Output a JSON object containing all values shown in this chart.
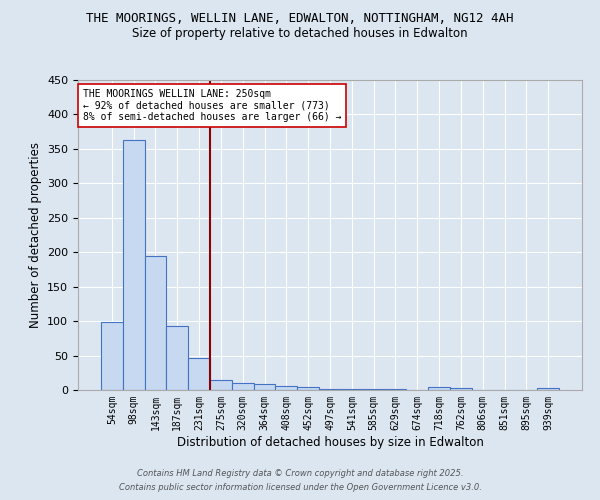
{
  "title_line1": "THE MOORINGS, WELLIN LANE, EDWALTON, NOTTINGHAM, NG12 4AH",
  "title_line2": "Size of property relative to detached houses in Edwalton",
  "xlabel": "Distribution of detached houses by size in Edwalton",
  "ylabel": "Number of detached properties",
  "bar_labels": [
    "54sqm",
    "98sqm",
    "143sqm",
    "187sqm",
    "231sqm",
    "275sqm",
    "320sqm",
    "364sqm",
    "408sqm",
    "452sqm",
    "497sqm",
    "541sqm",
    "585sqm",
    "629sqm",
    "674sqm",
    "718sqm",
    "762sqm",
    "806sqm",
    "851sqm",
    "895sqm",
    "939sqm"
  ],
  "bar_values": [
    99,
    363,
    194,
    93,
    46,
    14,
    10,
    9,
    6,
    4,
    2,
    1,
    1,
    1,
    0,
    5,
    3,
    0,
    0,
    0,
    3
  ],
  "bar_color": "#c6d9f0",
  "bar_edge_color": "#4472c4",
  "background_color": "#dce6f1",
  "grid_color": "#ffffff",
  "vline_x_index": 4.5,
  "vline_color": "#8b0000",
  "annotation_text": "THE MOORINGS WELLIN LANE: 250sqm\n← 92% of detached houses are smaller (773)\n8% of semi-detached houses are larger (66) →",
  "annotation_box_color": "#ffffff",
  "annotation_box_edge": "#cc0000",
  "footnote1": "Contains HM Land Registry data © Crown copyright and database right 2025.",
  "footnote2": "Contains public sector information licensed under the Open Government Licence v3.0.",
  "ylim": [
    0,
    450
  ],
  "yticks": [
    0,
    50,
    100,
    150,
    200,
    250,
    300,
    350,
    400,
    450
  ]
}
